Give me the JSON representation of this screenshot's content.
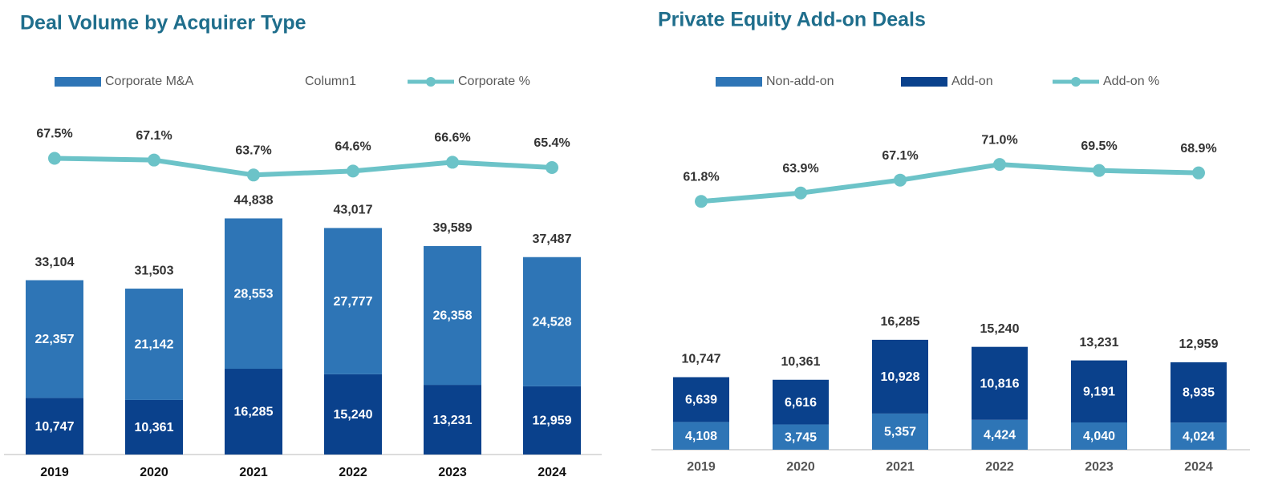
{
  "chart_data": [
    {
      "type": "bar",
      "title": "Deal Volume by Acquirer Type",
      "categories": [
        "2019",
        "2020",
        "2021",
        "2022",
        "2023",
        "2024"
      ],
      "ylim": [
        0,
        65000
      ],
      "y2lim": [
        0,
        78
      ],
      "series": [
        {
          "type": "bar",
          "color": "#0a418c",
          "values": [
            10747,
            10361,
            16285,
            15240,
            13231,
            12959
          ],
          "value_labels": [
            "10,747",
            "10,361",
            "16,285",
            "15,240",
            "13,231",
            "12,959"
          ]
        },
        {
          "type": "bar",
          "name": "Corporate M&A",
          "color": "#2e75b6",
          "values": [
            22357,
            21142,
            28553,
            27777,
            26358,
            24528
          ],
          "value_labels": [
            "22,357",
            "21,142",
            "28,553",
            "27,777",
            "26,358",
            "24,528"
          ]
        },
        {
          "type": "label",
          "name": "Column1",
          "values": [
            33104,
            31503,
            44838,
            43017,
            39589,
            37487
          ],
          "value_labels": [
            "33,104",
            "31,503",
            "44,838",
            "43,017",
            "39,589",
            "37,487"
          ]
        },
        {
          "type": "line",
          "name": "Corporate %",
          "axis": "y2",
          "color": "#6cc3c8",
          "values": [
            67.5,
            67.1,
            63.7,
            64.6,
            66.6,
            65.4
          ],
          "value_labels": [
            "67.5%",
            "67.1%",
            "63.7%",
            "64.6%",
            "66.6%",
            "65.4%"
          ]
        }
      ]
    },
    {
      "type": "bar",
      "title": "Private Equity Add-on Deals",
      "categories": [
        "2019",
        "2020",
        "2021",
        "2022",
        "2023",
        "2024"
      ],
      "ylim": [
        0,
        50000
      ],
      "y2lim": [
        0,
        84
      ],
      "series": [
        {
          "type": "bar",
          "name": "Non-add-on",
          "color": "#2e75b6",
          "values": [
            4108,
            3745,
            5357,
            4424,
            4040,
            4024
          ],
          "value_labels": [
            "4,108",
            "3,745",
            "5,357",
            "4,424",
            "4,040",
            "4,024"
          ]
        },
        {
          "type": "bar",
          "name": "Add-on",
          "color": "#0a418c",
          "values": [
            6639,
            6616,
            10928,
            10816,
            9191,
            8935
          ],
          "value_labels": [
            "6,639",
            "6,616",
            "10,928",
            "10,816",
            "9,191",
            "8,935"
          ]
        },
        {
          "type": "line",
          "name": "Add-on %",
          "axis": "y2",
          "color": "#6cc3c8",
          "values": [
            61.8,
            63.9,
            67.1,
            71.0,
            69.5,
            68.9
          ],
          "value_labels": [
            "61.8%",
            "63.9%",
            "67.1%",
            "71.0%",
            "69.5%",
            "68.9%"
          ]
        }
      ],
      "totals": [
        10747,
        10361,
        16285,
        15240,
        13231,
        12959
      ],
      "total_labels": [
        "10,747",
        "10,361",
        "16,285",
        "15,240",
        "13,231",
        "12,959"
      ]
    }
  ]
}
